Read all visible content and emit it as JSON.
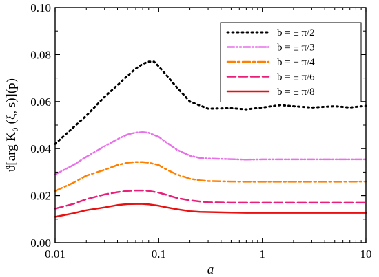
{
  "chart_data": {
    "type": "line",
    "xscale": "log",
    "xlim": [
      0.01,
      10
    ],
    "ylim": [
      0.0,
      0.1
    ],
    "xlabel": "a",
    "ylabel": "ϑ[arg K₀ (ξ, s)](p)",
    "x_ticks": [
      {
        "value": 0.01,
        "label": "0.01"
      },
      {
        "value": 0.1,
        "label": "0.1"
      },
      {
        "value": 1,
        "label": "1"
      },
      {
        "value": 10,
        "label": "10"
      }
    ],
    "y_ticks": [
      {
        "value": 0.0,
        "label": "0.00"
      },
      {
        "value": 0.02,
        "label": "0.02"
      },
      {
        "value": 0.04,
        "label": "0.04"
      },
      {
        "value": 0.06,
        "label": "0.06"
      },
      {
        "value": 0.08,
        "label": "0.08"
      },
      {
        "value": 0.1,
        "label": "0.10"
      }
    ],
    "legend_position": "top-right",
    "series": [
      {
        "name": "b = ± π/2",
        "color": "#000000",
        "style": "dot",
        "x": [
          0.01,
          0.015,
          0.02,
          0.03,
          0.04,
          0.05,
          0.06,
          0.07,
          0.08,
          0.09,
          0.1,
          0.12,
          0.15,
          0.2,
          0.3,
          0.5,
          0.7,
          1,
          1.5,
          2,
          3,
          5,
          7,
          10
        ],
        "values": [
          0.042,
          0.049,
          0.054,
          0.062,
          0.067,
          0.071,
          0.074,
          0.076,
          0.077,
          0.077,
          0.075,
          0.071,
          0.066,
          0.06,
          0.057,
          0.0572,
          0.0567,
          0.0575,
          0.0585,
          0.058,
          0.0575,
          0.058,
          0.0575,
          0.0582
        ]
      },
      {
        "name": "b = ± π/3",
        "color": "#e870e8",
        "style": "dash-dot-dot",
        "x": [
          0.01,
          0.015,
          0.02,
          0.03,
          0.04,
          0.05,
          0.06,
          0.07,
          0.08,
          0.1,
          0.12,
          0.15,
          0.2,
          0.25,
          0.3,
          0.5,
          0.7,
          1,
          2,
          5,
          10
        ],
        "values": [
          0.029,
          0.033,
          0.0365,
          0.041,
          0.044,
          0.046,
          0.0468,
          0.047,
          0.0467,
          0.045,
          0.0425,
          0.0395,
          0.037,
          0.036,
          0.0358,
          0.0355,
          0.0353,
          0.0354,
          0.0354,
          0.0354,
          0.0354
        ]
      },
      {
        "name": "b = ± π/4",
        "color": "#ff8000",
        "style": "dash-dot",
        "x": [
          0.01,
          0.015,
          0.02,
          0.03,
          0.04,
          0.05,
          0.06,
          0.07,
          0.08,
          0.1,
          0.12,
          0.15,
          0.2,
          0.25,
          0.3,
          0.5,
          0.7,
          1,
          2,
          5,
          10
        ],
        "values": [
          0.022,
          0.0255,
          0.0285,
          0.031,
          0.033,
          0.034,
          0.0343,
          0.0343,
          0.034,
          0.033,
          0.031,
          0.029,
          0.0272,
          0.0265,
          0.0262,
          0.026,
          0.0259,
          0.0259,
          0.0259,
          0.0259,
          0.026
        ]
      },
      {
        "name": "b = ± π/6",
        "color": "#e8207a",
        "style": "dash",
        "x": [
          0.01,
          0.015,
          0.02,
          0.03,
          0.04,
          0.05,
          0.06,
          0.07,
          0.08,
          0.1,
          0.12,
          0.15,
          0.2,
          0.25,
          0.3,
          0.5,
          0.7,
          1,
          2,
          5,
          10
        ],
        "values": [
          0.0145,
          0.0165,
          0.0185,
          0.0205,
          0.0215,
          0.022,
          0.0222,
          0.0222,
          0.022,
          0.0213,
          0.0203,
          0.019,
          0.018,
          0.0175,
          0.0172,
          0.017,
          0.017,
          0.017,
          0.017,
          0.017,
          0.017
        ]
      },
      {
        "name": "b = ± π/8",
        "color": "#e81010",
        "style": "solid",
        "x": [
          0.01,
          0.015,
          0.02,
          0.03,
          0.04,
          0.05,
          0.06,
          0.07,
          0.08,
          0.1,
          0.12,
          0.15,
          0.2,
          0.25,
          0.3,
          0.5,
          0.7,
          1,
          2,
          5,
          10
        ],
        "values": [
          0.011,
          0.0125,
          0.0138,
          0.015,
          0.016,
          0.0164,
          0.0165,
          0.0165,
          0.0163,
          0.0157,
          0.015,
          0.0142,
          0.0134,
          0.0131,
          0.013,
          0.0128,
          0.0127,
          0.0127,
          0.0127,
          0.0127,
          0.0127
        ]
      }
    ]
  }
}
